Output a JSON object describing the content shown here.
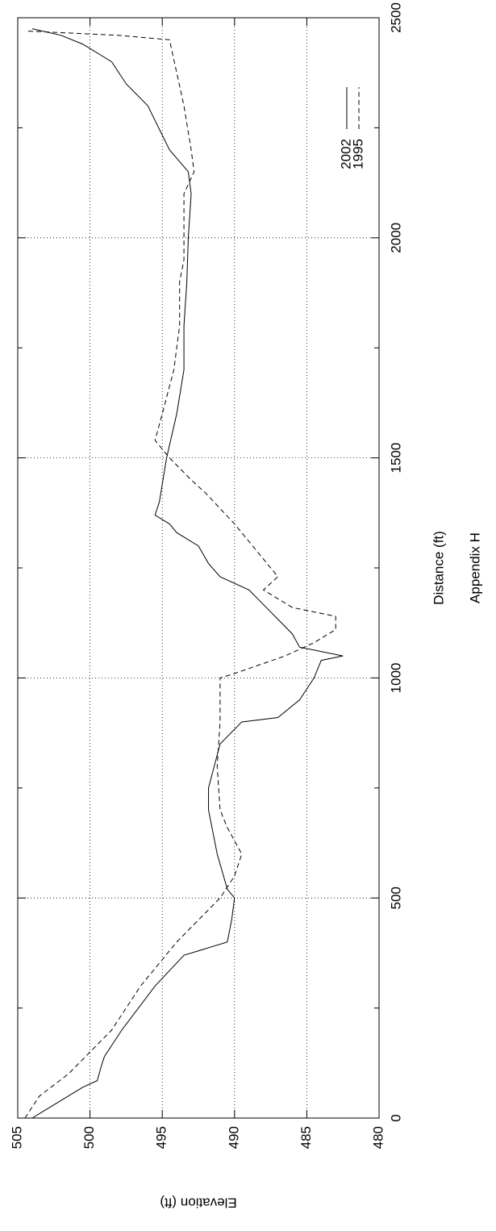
{
  "chart_data": {
    "type": "line",
    "x_label": "Distance (ft)",
    "y_label": "Elevation (ft)",
    "caption": "Appendix H",
    "xlim": [
      0,
      2500
    ],
    "xticks": [
      0,
      500,
      1000,
      1500,
      2000,
      2500
    ],
    "xminorticks": [
      250,
      750,
      1250,
      1750,
      2250
    ],
    "ylim": [
      480,
      505
    ],
    "yticks": [
      480,
      485,
      490,
      495,
      500,
      505
    ],
    "grid": true,
    "legend": "lower right",
    "series": [
      {
        "name": "2002",
        "color": "#000000",
        "dash": "solid",
        "x": [
          0,
          20,
          50,
          70,
          85,
          120,
          140,
          200,
          300,
          370,
          400,
          450,
          500,
          520,
          600,
          700,
          750,
          850,
          900,
          910,
          950,
          1000,
          1040,
          1050,
          1070,
          1100,
          1150,
          1200,
          1230,
          1260,
          1300,
          1330,
          1350,
          1370,
          1400,
          1500,
          1600,
          1700,
          1800,
          1900,
          2000,
          2100,
          2150,
          2200,
          2300,
          2350,
          2400,
          2440,
          2460,
          2475
        ],
        "values": [
          504,
          503,
          501.5,
          500.5,
          499.5,
          499.2,
          499,
          497.8,
          495.5,
          493.5,
          490.5,
          490.2,
          490,
          490.5,
          491.2,
          491.8,
          491.8,
          491,
          489.5,
          487,
          485.5,
          484.5,
          484,
          482.5,
          485.5,
          486,
          487.5,
          489,
          491,
          491.8,
          492.5,
          494,
          494.5,
          495.5,
          495.2,
          494.7,
          494,
          493.5,
          493.5,
          493.3,
          493.2,
          493,
          493.2,
          494.5,
          496,
          497.5,
          498.5,
          500.5,
          502,
          504
        ]
      },
      {
        "name": "1995",
        "color": "#000000",
        "dash": "dashed",
        "x": [
          0,
          50,
          100,
          150,
          200,
          300,
          400,
          450,
          500,
          550,
          600,
          630,
          660,
          700,
          800,
          900,
          1000,
          1010,
          1050,
          1080,
          1110,
          1140,
          1160,
          1180,
          1200,
          1230,
          1270,
          1350,
          1420,
          1450,
          1500,
          1540,
          1600,
          1700,
          1800,
          1900,
          1950,
          2000,
          2100,
          2150,
          2200,
          2300,
          2450,
          2460,
          2470
        ],
        "values": [
          504.5,
          503.5,
          501.5,
          500,
          498.5,
          496.5,
          494,
          492.5,
          491,
          490,
          489.5,
          490,
          490.5,
          491,
          491.2,
          491,
          491,
          490,
          486.5,
          484.5,
          483,
          483,
          486,
          487,
          488,
          487,
          488,
          490,
          492,
          493,
          494.5,
          495.5,
          495,
          494.2,
          493.8,
          493.8,
          493.5,
          493.5,
          493.5,
          492.8,
          493,
          493.5,
          494.5,
          498,
          504.5
        ]
      }
    ]
  }
}
